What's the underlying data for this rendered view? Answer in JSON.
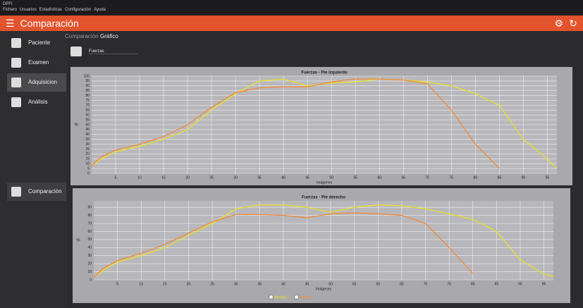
{
  "window_title": "DPFI",
  "menu": [
    "Fichero",
    "Usuarios",
    "Estadísticas",
    "Configuración",
    "Ayuda"
  ],
  "header": {
    "title": "Comparación"
  },
  "sidebar": [
    "Paciente",
    "Examen",
    "Adquisicion",
    "Análisis",
    "Comparación"
  ],
  "tabs": [
    "Comparación",
    "Gráfico"
  ],
  "dropdown": "Fuerzas",
  "chart_data": [
    {
      "type": "line",
      "title": "Fuerzas - Pie izquierdo",
      "x_label": "Imágenes",
      "y_label": "%",
      "x": [
        0,
        2,
        5,
        10,
        15,
        20,
        25,
        30,
        35,
        40,
        45,
        50,
        55,
        60,
        65,
        70,
        75,
        80,
        85,
        90,
        95,
        97
      ],
      "xlim": [
        0,
        97
      ],
      "xticks": [
        5,
        10,
        15,
        20,
        25,
        30,
        35,
        40,
        45,
        50,
        55,
        60,
        65,
        70,
        75,
        80,
        85,
        90,
        95
      ],
      "ylim": [
        0,
        100
      ],
      "yticks": [
        0,
        5,
        10,
        15,
        20,
        25,
        30,
        35,
        40,
        45,
        50,
        55,
        60,
        65,
        70,
        75,
        80,
        85,
        90,
        95,
        100
      ],
      "grid": true,
      "series": [
        {
          "color": "#e8e02a",
          "values": [
            8,
            15,
            22,
            28,
            35,
            45,
            65,
            82,
            95,
            97,
            90,
            93,
            94,
            97,
            96,
            94,
            90,
            82,
            70,
            35,
            15,
            5
          ]
        },
        {
          "color": "#f08a3a",
          "values": [
            8,
            17,
            24,
            30,
            38,
            50,
            68,
            83,
            88,
            89,
            89,
            94,
            97,
            97,
            96,
            92,
            65,
            30,
            5,
            null,
            null,
            null
          ]
        }
      ]
    },
    {
      "type": "line",
      "title": "Fuerzas - Pie derecho",
      "x_label": "Imágenes",
      "y_label": "%",
      "x": [
        0,
        2,
        5,
        10,
        15,
        20,
        25,
        30,
        35,
        40,
        45,
        50,
        55,
        60,
        65,
        70,
        75,
        80,
        85,
        90,
        95,
        97
      ],
      "xlim": [
        0,
        97
      ],
      "xticks": [
        5,
        10,
        15,
        20,
        25,
        30,
        35,
        40,
        45,
        50,
        55,
        60,
        65,
        70,
        75,
        80,
        85,
        90,
        95
      ],
      "ylim": [
        0,
        98
      ],
      "yticks": [
        0,
        10,
        20,
        30,
        40,
        50,
        60,
        70,
        80,
        90
      ],
      "grid": true,
      "series": [
        {
          "name": "Medida 1",
          "color": "#e8e02a",
          "values": [
            3,
            12,
            22,
            30,
            40,
            55,
            70,
            88,
            93,
            93,
            90,
            84,
            90,
            93,
            92,
            88,
            82,
            75,
            60,
            25,
            7,
            4
          ]
        },
        {
          "name": "Medida 2",
          "color": "#f08a3a",
          "values": [
            3,
            14,
            24,
            33,
            44,
            58,
            72,
            81,
            81,
            80,
            77,
            82,
            83,
            82,
            80,
            70,
            40,
            8,
            null,
            null,
            null,
            null
          ]
        }
      ]
    }
  ]
}
